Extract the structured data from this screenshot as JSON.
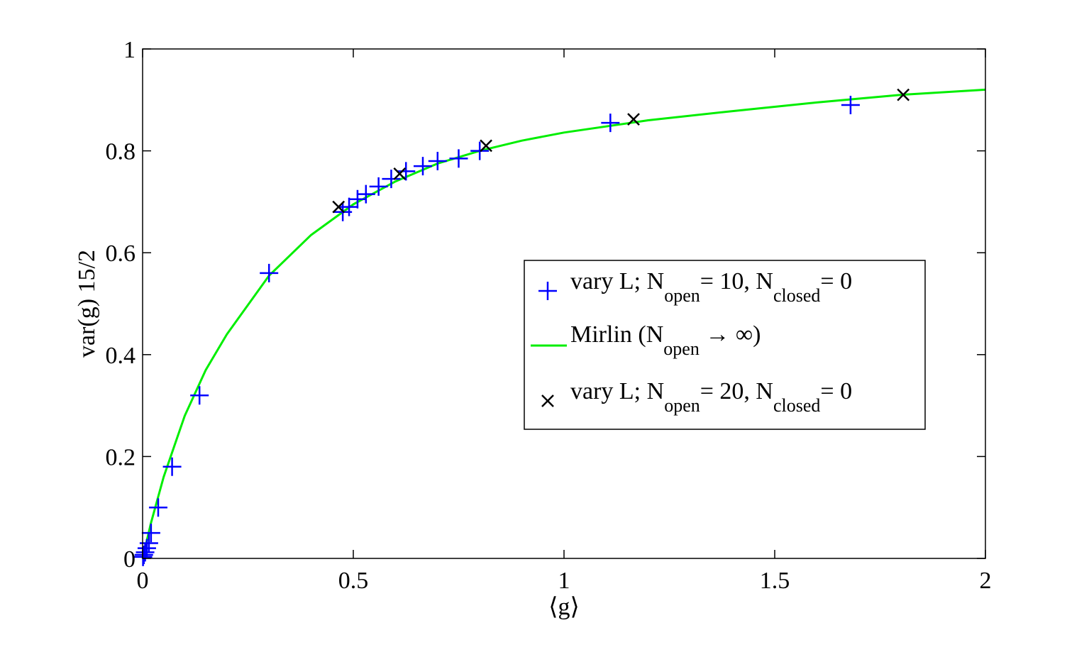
{
  "chart_data": {
    "type": "scatter",
    "xlabel": "⟨g⟩",
    "ylabel": "var(g) 15/2",
    "xlim": [
      0,
      2
    ],
    "ylim": [
      0,
      1
    ],
    "xticks": [
      0,
      0.5,
      1,
      1.5,
      2
    ],
    "xtick_labels": [
      "0",
      "0.5",
      "1",
      "1.5",
      "2"
    ],
    "yticks": [
      0,
      0.2,
      0.4,
      0.6,
      0.8,
      1
    ],
    "ytick_labels": [
      "0",
      "0.2",
      "0.4",
      "0.6",
      "0.8",
      "1"
    ],
    "grid": false,
    "legend_position": "center-right",
    "series": [
      {
        "label_parts": [
          "vary L; N",
          "open",
          "= 10, N",
          "closed",
          "= 0"
        ],
        "marker": "+",
        "color": "#0000ff",
        "x": [
          0.001,
          0.003,
          0.006,
          0.01,
          0.015,
          0.02,
          0.037,
          0.07,
          0.135,
          0.3,
          0.475,
          0.49,
          0.51,
          0.53,
          0.56,
          0.59,
          0.625,
          0.665,
          0.7,
          0.75,
          0.8,
          1.11,
          1.68
        ],
        "y": [
          0.003,
          0.007,
          0.012,
          0.02,
          0.03,
          0.05,
          0.1,
          0.18,
          0.32,
          0.56,
          0.68,
          0.69,
          0.705,
          0.715,
          0.73,
          0.745,
          0.76,
          0.77,
          0.78,
          0.785,
          0.8,
          0.855,
          0.89
        ]
      },
      {
        "label_parts": [
          "Mirlin (N",
          "open",
          " → ∞)"
        ],
        "marker": "line",
        "color": "#00ee00",
        "x": [
          0,
          0.02,
          0.05,
          0.1,
          0.15,
          0.2,
          0.3,
          0.4,
          0.5,
          0.6,
          0.7,
          0.8,
          0.9,
          1.0,
          1.2,
          1.4,
          1.6,
          1.8,
          2.0
        ],
        "y": [
          0,
          0.07,
          0.16,
          0.28,
          0.37,
          0.44,
          0.555,
          0.635,
          0.695,
          0.74,
          0.775,
          0.8,
          0.82,
          0.836,
          0.86,
          0.878,
          0.895,
          0.91,
          0.92
        ]
      },
      {
        "label_parts": [
          "vary L; N",
          "open",
          "= 20, N",
          "closed",
          "= 0"
        ],
        "marker": "x",
        "color": "#000000",
        "x": [
          0.465,
          0.61,
          0.815,
          1.165,
          1.805
        ],
        "y": [
          0.69,
          0.755,
          0.81,
          0.862,
          0.91
        ]
      }
    ]
  }
}
